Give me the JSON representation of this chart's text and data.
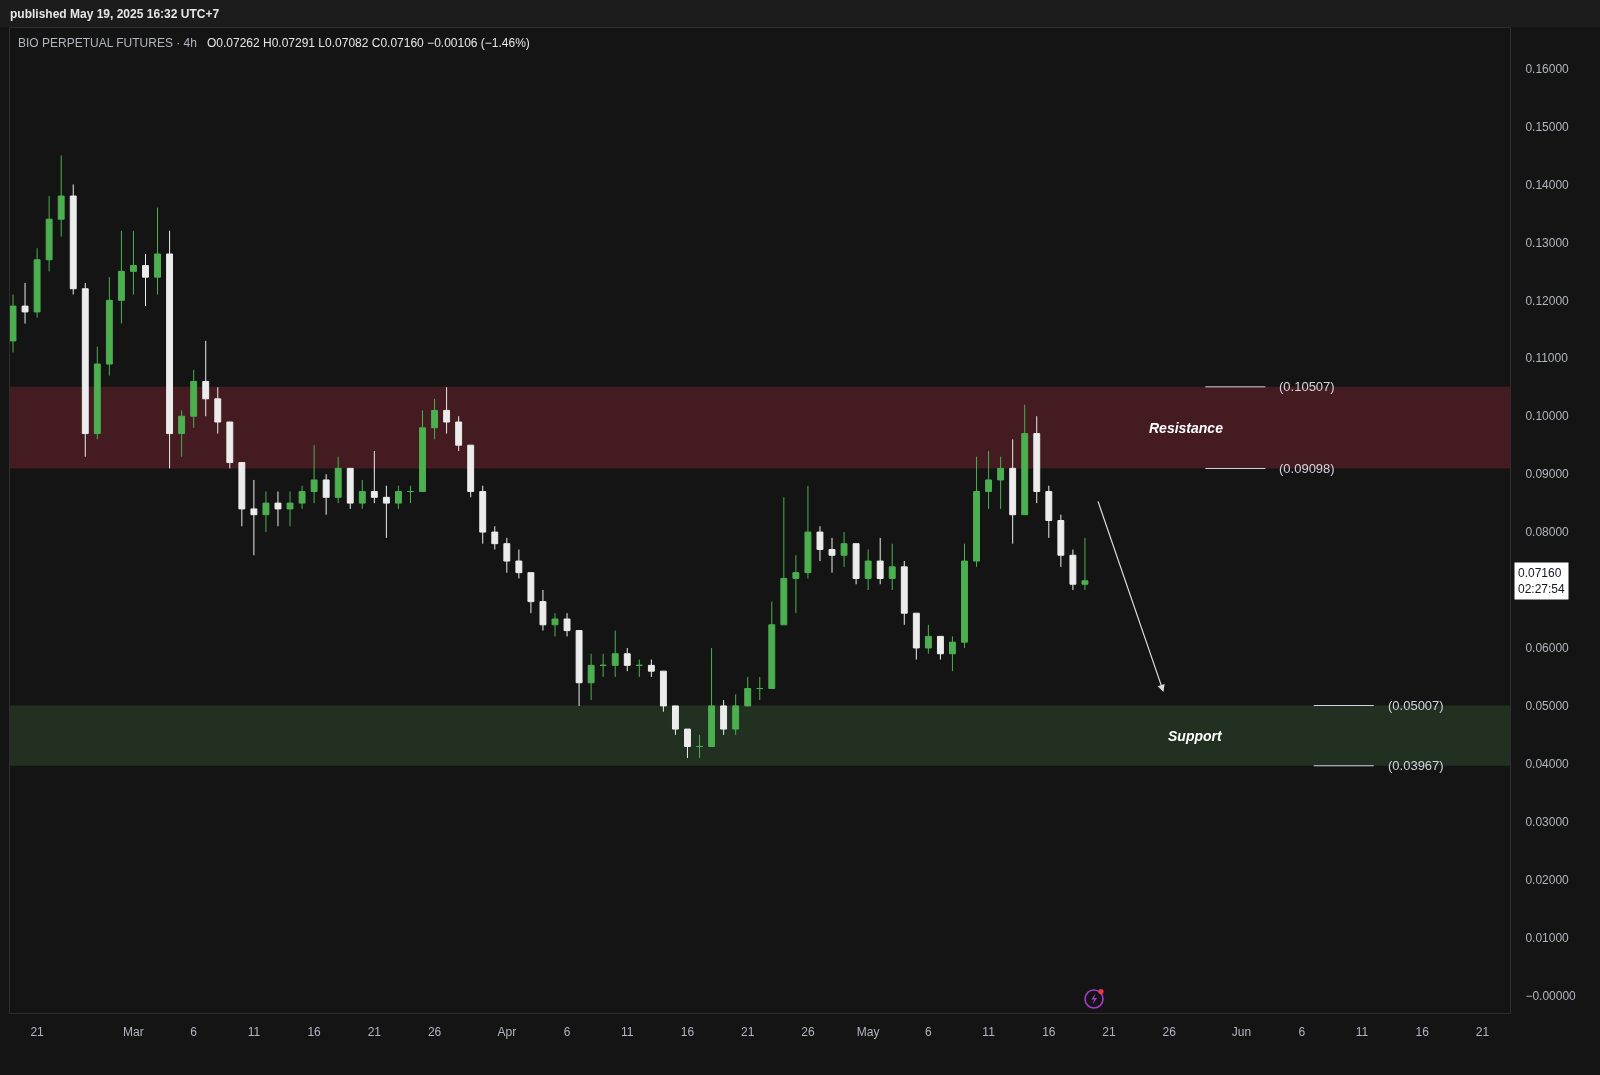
{
  "chart_data": {
    "type": "candlestick",
    "title": "BIO PERPETUAL FUTURES · 4h",
    "subtitle": "O0.07262 H0.07291 L0.07082 C0.07160 −0.00106 (−1.46%)",
    "annotations": [
      "published May 19, 2025 16:32 UTC+7",
      {
        "text": "(0.10507)",
        "x": "2025-05-29",
        "y": 0.10507
      },
      {
        "text": "(0.09098)",
        "x": "2025-05-29",
        "y": 0.09098
      },
      {
        "text": "(0.05007)",
        "x": "2025-06-07",
        "y": 0.05007
      },
      {
        "text": "(0.03967)",
        "x": "2025-06-07",
        "y": 0.03967
      },
      "0.07160\n02:27:54"
    ],
    "x": [
      "2025-02-19",
      "2025-02-20",
      "2025-02-21",
      "2025-02-22",
      "2025-02-23",
      "2025-02-24",
      "2025-02-25",
      "2025-02-26",
      "2025-02-27",
      "2025-02-28",
      "2025-03-01",
      "2025-03-02",
      "2025-03-03",
      "2025-03-04",
      "2025-03-05",
      "2025-03-06",
      "2025-03-07",
      "2025-03-08",
      "2025-03-09",
      "2025-03-10",
      "2025-03-11",
      "2025-03-12",
      "2025-03-13",
      "2025-03-14",
      "2025-03-15",
      "2025-03-16",
      "2025-03-17",
      "2025-03-18",
      "2025-03-19",
      "2025-03-20",
      "2025-03-21",
      "2025-03-22",
      "2025-03-23",
      "2025-03-24",
      "2025-03-25",
      "2025-03-26",
      "2025-03-27",
      "2025-03-28",
      "2025-03-29",
      "2025-03-30",
      "2025-03-31",
      "2025-04-01",
      "2025-04-02",
      "2025-04-03",
      "2025-04-04",
      "2025-04-05",
      "2025-04-06",
      "2025-04-07",
      "2025-04-08",
      "2025-04-09",
      "2025-04-10",
      "2025-04-11",
      "2025-04-12",
      "2025-04-13",
      "2025-04-14",
      "2025-04-15",
      "2025-04-16",
      "2025-04-17",
      "2025-04-18",
      "2025-04-19",
      "2025-04-20",
      "2025-04-21",
      "2025-04-22",
      "2025-04-23",
      "2025-04-24",
      "2025-04-25",
      "2025-04-26",
      "2025-04-27",
      "2025-04-28",
      "2025-04-29",
      "2025-04-30",
      "2025-05-01",
      "2025-05-02",
      "2025-05-03",
      "2025-05-04",
      "2025-05-05",
      "2025-05-06",
      "2025-05-07",
      "2025-05-08",
      "2025-05-09",
      "2025-05-10",
      "2025-05-11",
      "2025-05-12",
      "2025-05-13",
      "2025-05-14",
      "2025-05-15",
      "2025-05-16",
      "2025-05-17",
      "2025-05-18",
      "2025-05-19"
    ],
    "ohlc": [
      [
        0.113,
        0.121,
        0.111,
        0.119
      ],
      [
        0.119,
        0.123,
        0.116,
        0.118
      ],
      [
        0.118,
        0.129,
        0.117,
        0.127
      ],
      [
        0.127,
        0.138,
        0.125,
        0.134
      ],
      [
        0.134,
        0.145,
        0.131,
        0.138
      ],
      [
        0.138,
        0.14,
        0.121,
        0.122
      ],
      [
        0.122,
        0.123,
        0.093,
        0.097
      ],
      [
        0.097,
        0.112,
        0.096,
        0.109
      ],
      [
        0.109,
        0.124,
        0.107,
        0.12
      ],
      [
        0.12,
        0.132,
        0.116,
        0.125
      ],
      [
        0.125,
        0.132,
        0.121,
        0.126
      ],
      [
        0.126,
        0.128,
        0.119,
        0.124
      ],
      [
        0.124,
        0.136,
        0.121,
        0.128
      ],
      [
        0.128,
        0.132,
        0.091,
        0.097
      ],
      [
        0.097,
        0.101,
        0.093,
        0.1
      ],
      [
        0.1,
        0.108,
        0.098,
        0.106
      ],
      [
        0.106,
        0.113,
        0.1,
        0.103
      ],
      [
        0.103,
        0.105,
        0.097,
        0.099
      ],
      [
        0.099,
        0.099,
        0.091,
        0.092
      ],
      [
        0.092,
        0.092,
        0.081,
        0.084
      ],
      [
        0.084,
        0.089,
        0.076,
        0.083
      ],
      [
        0.083,
        0.087,
        0.08,
        0.085
      ],
      [
        0.085,
        0.087,
        0.081,
        0.084
      ],
      [
        0.084,
        0.087,
        0.081,
        0.085
      ],
      [
        0.085,
        0.088,
        0.084,
        0.087
      ],
      [
        0.087,
        0.095,
        0.085,
        0.089
      ],
      [
        0.089,
        0.09,
        0.083,
        0.086
      ],
      [
        0.086,
        0.093,
        0.085,
        0.091
      ],
      [
        0.091,
        0.091,
        0.084,
        0.085
      ],
      [
        0.085,
        0.089,
        0.084,
        0.087
      ],
      [
        0.087,
        0.094,
        0.085,
        0.086
      ],
      [
        0.086,
        0.088,
        0.079,
        0.085
      ],
      [
        0.085,
        0.088,
        0.084,
        0.087
      ],
      [
        0.087,
        0.088,
        0.085,
        0.087
      ],
      [
        0.087,
        0.101,
        0.087,
        0.098
      ],
      [
        0.098,
        0.103,
        0.096,
        0.101
      ],
      [
        0.101,
        0.105,
        0.097,
        0.099
      ],
      [
        0.099,
        0.1,
        0.094,
        0.095
      ],
      [
        0.095,
        0.095,
        0.086,
        0.087
      ],
      [
        0.087,
        0.088,
        0.078,
        0.08
      ],
      [
        0.08,
        0.081,
        0.077,
        0.078
      ],
      [
        0.078,
        0.079,
        0.073,
        0.075
      ],
      [
        0.075,
        0.077,
        0.072,
        0.073
      ],
      [
        0.073,
        0.073,
        0.066,
        0.068
      ],
      [
        0.068,
        0.07,
        0.063,
        0.064
      ],
      [
        0.064,
        0.066,
        0.062,
        0.065
      ],
      [
        0.065,
        0.066,
        0.062,
        0.063
      ],
      [
        0.063,
        0.063,
        0.05,
        0.054
      ],
      [
        0.054,
        0.059,
        0.051,
        0.057
      ],
      [
        0.057,
        0.059,
        0.055,
        0.057
      ],
      [
        0.057,
        0.063,
        0.055,
        0.059
      ],
      [
        0.059,
        0.06,
        0.056,
        0.057
      ],
      [
        0.057,
        0.058,
        0.055,
        0.057
      ],
      [
        0.057,
        0.058,
        0.055,
        0.056
      ],
      [
        0.056,
        0.056,
        0.049,
        0.05
      ],
      [
        0.05,
        0.05,
        0.045,
        0.046
      ],
      [
        0.046,
        0.046,
        0.041,
        0.043
      ],
      [
        0.043,
        0.045,
        0.041,
        0.043
      ],
      [
        0.043,
        0.06,
        0.043,
        0.05
      ],
      [
        0.05,
        0.051,
        0.045,
        0.046
      ],
      [
        0.046,
        0.052,
        0.045,
        0.05
      ],
      [
        0.05,
        0.055,
        0.05,
        0.053
      ],
      [
        0.053,
        0.055,
        0.051,
        0.053
      ],
      [
        0.053,
        0.068,
        0.053,
        0.064
      ],
      [
        0.064,
        0.086,
        0.064,
        0.072
      ],
      [
        0.072,
        0.076,
        0.066,
        0.073
      ],
      [
        0.073,
        0.088,
        0.072,
        0.08
      ],
      [
        0.08,
        0.081,
        0.075,
        0.077
      ],
      [
        0.077,
        0.079,
        0.073,
        0.076
      ],
      [
        0.076,
        0.08,
        0.074,
        0.078
      ],
      [
        0.078,
        0.078,
        0.071,
        0.072
      ],
      [
        0.072,
        0.077,
        0.07,
        0.075
      ],
      [
        0.075,
        0.079,
        0.071,
        0.072
      ],
      [
        0.072,
        0.078,
        0.07,
        0.074
      ],
      [
        0.074,
        0.075,
        0.064,
        0.066
      ],
      [
        0.066,
        0.066,
        0.058,
        0.06
      ],
      [
        0.06,
        0.064,
        0.059,
        0.062
      ],
      [
        0.062,
        0.062,
        0.058,
        0.059
      ],
      [
        0.059,
        0.062,
        0.056,
        0.061
      ],
      [
        0.061,
        0.078,
        0.06,
        0.075
      ],
      [
        0.075,
        0.093,
        0.074,
        0.087
      ],
      [
        0.087,
        0.094,
        0.084,
        0.089
      ],
      [
        0.089,
        0.093,
        0.084,
        0.091
      ],
      [
        0.091,
        0.096,
        0.078,
        0.083
      ],
      [
        0.083,
        0.102,
        0.083,
        0.097
      ],
      [
        0.097,
        0.1,
        0.085,
        0.087
      ],
      [
        0.087,
        0.088,
        0.079,
        0.082
      ],
      [
        0.082,
        0.083,
        0.074,
        0.076
      ],
      [
        0.076,
        0.077,
        0.07,
        0.071
      ],
      [
        0.071,
        0.079,
        0.07,
        0.0716
      ]
    ],
    "colors": [
      "#4caf50",
      "#ececec",
      "#4caf50",
      "#4caf50",
      "#4caf50",
      "#ececec",
      "#ececec",
      "#4caf50",
      "#4caf50",
      "#4caf50",
      "#4caf50",
      "#ececec",
      "#4caf50",
      "#ececec",
      "#4caf50",
      "#4caf50",
      "#ececec",
      "#ececec",
      "#ececec",
      "#ececec",
      "#ececec",
      "#4caf50",
      "#ececec",
      "#4caf50",
      "#4caf50",
      "#4caf50",
      "#ececec",
      "#4caf50",
      "#ececec",
      "#4caf50",
      "#ececec",
      "#ececec",
      "#4caf50",
      "#4caf50",
      "#4caf50",
      "#4caf50",
      "#ececec",
      "#ececec",
      "#ececec",
      "#ececec",
      "#ececec",
      "#ececec",
      "#ececec",
      "#ececec",
      "#ececec",
      "#4caf50",
      "#ececec",
      "#ececec",
      "#4caf50",
      "#4caf50",
      "#4caf50",
      "#ececec",
      "#4caf50",
      "#ececec",
      "#ececec",
      "#ececec",
      "#ececec",
      "#4caf50",
      "#4caf50",
      "#ececec",
      "#4caf50",
      "#4caf50",
      "#4caf50",
      "#4caf50",
      "#4caf50",
      "#4caf50",
      "#4caf50",
      "#ececec",
      "#ececec",
      "#4caf50",
      "#ececec",
      "#4caf50",
      "#ececec",
      "#4caf50",
      "#ececec",
      "#ececec",
      "#4caf50",
      "#ececec",
      "#4caf50",
      "#4caf50",
      "#4caf50",
      "#4caf50",
      "#4caf50",
      "#ececec",
      "#4caf50",
      "#ececec",
      "#ececec",
      "#ececec",
      "#ececec",
      "#4caf50"
    ],
    "xlim": [
      "2025-02-18T18:00",
      "2025-06-23T07:00"
    ],
    "xticks": [
      {
        "value": "2025-02-21",
        "label": "21"
      },
      {
        "value": "2025-03-01",
        "label": "Mar"
      },
      {
        "value": "2025-03-06",
        "label": "6"
      },
      {
        "value": "2025-03-11",
        "label": "11"
      },
      {
        "value": "2025-03-16",
        "label": "16"
      },
      {
        "value": "2025-03-21",
        "label": "21"
      },
      {
        "value": "2025-03-26",
        "label": "26"
      },
      {
        "value": "2025-04-01",
        "label": "Apr"
      },
      {
        "value": "2025-04-06",
        "label": "6"
      },
      {
        "value": "2025-04-11",
        "label": "11"
      },
      {
        "value": "2025-04-16",
        "label": "16"
      },
      {
        "value": "2025-04-21",
        "label": "21"
      },
      {
        "value": "2025-04-26",
        "label": "26"
      },
      {
        "value": "2025-05-01",
        "label": "May"
      },
      {
        "value": "2025-05-06",
        "label": "6"
      },
      {
        "value": "2025-05-11",
        "label": "11"
      },
      {
        "value": "2025-05-16",
        "label": "16"
      },
      {
        "value": "2025-05-21",
        "label": "21"
      },
      {
        "value": "2025-05-26",
        "label": "26"
      },
      {
        "value": "2025-06-01",
        "label": "Jun"
      },
      {
        "value": "2025-06-06",
        "label": "6"
      },
      {
        "value": "2025-06-11",
        "label": "11"
      },
      {
        "value": "2025-06-16",
        "label": "16"
      },
      {
        "value": "2025-06-21",
        "label": "21"
      }
    ],
    "ylim": [
      -0.003,
      0.167
    ],
    "yticks": [
      {
        "value": 0,
        "label": "−0.00000"
      },
      {
        "value": 0.01,
        "label": "0.01000"
      },
      {
        "value": 0.02,
        "label": "0.02000"
      },
      {
        "value": 0.03,
        "label": "0.03000"
      },
      {
        "value": 0.04,
        "label": "0.04000"
      },
      {
        "value": 0.05,
        "label": "0.05000"
      },
      {
        "value": 0.06,
        "label": "0.06000"
      },
      {
        "value": 0.08,
        "label": "0.08000"
      },
      {
        "value": 0.09,
        "label": "0.09000"
      },
      {
        "value": 0.1,
        "label": "0.10000"
      },
      {
        "value": 0.11,
        "label": "0.11000"
      },
      {
        "value": 0.12,
        "label": "0.12000"
      },
      {
        "value": 0.13,
        "label": "0.13000"
      },
      {
        "value": 0.14,
        "label": "0.14000"
      },
      {
        "value": 0.15,
        "label": "0.15000"
      },
      {
        "value": 0.16,
        "label": "0.16000"
      }
    ],
    "bands": [
      {
        "axis": "y",
        "from": 0.09098,
        "to": 0.10507,
        "label": "Resistance",
        "color": "#431b20"
      },
      {
        "axis": "y",
        "from": 0.03967,
        "to": 0.05007,
        "label": "Support",
        "color": "#213021"
      }
    ]
  }
}
